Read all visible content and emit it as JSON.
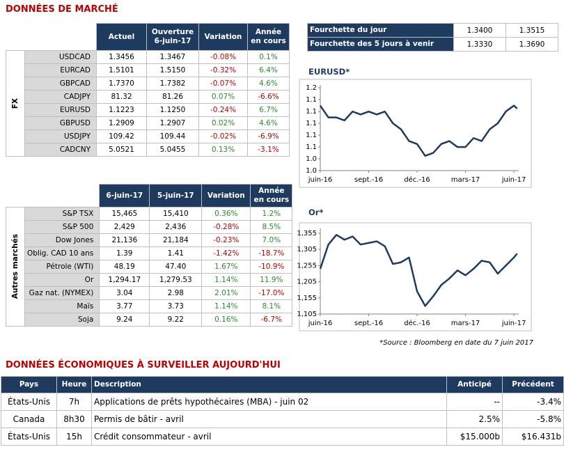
{
  "title": "DONNÉES DE MARCHÉ",
  "fx": {
    "group": "FX",
    "headers": [
      "Actuel",
      "Ouverture 6-juin-17",
      "Variation",
      "Année en cours"
    ],
    "rows": [
      [
        "USDCAD",
        "1.3456",
        "1.3467",
        "-0.08%",
        "0.1%"
      ],
      [
        "EURCAD",
        "1.5101",
        "1.5150",
        "-0.32%",
        "6.4%"
      ],
      [
        "GBPCAD",
        "1.7370",
        "1.7382",
        "-0.07%",
        "4.6%"
      ],
      [
        "CADJPY",
        "81.32",
        "81.26",
        "0.07%",
        "-6.6%"
      ],
      [
        "EURUSD",
        "1.1223",
        "1.1250",
        "-0.24%",
        "6.7%"
      ],
      [
        "GBPUSD",
        "1.2909",
        "1.2907",
        "0.02%",
        "4.6%"
      ],
      [
        "USDJPY",
        "109.42",
        "109.44",
        "-0.02%",
        "-6.9%"
      ],
      [
        "CADCNY",
        "5.0521",
        "5.0455",
        "0.13%",
        "-3.1%"
      ]
    ]
  },
  "markets": {
    "group": "Autres marchés",
    "headers": [
      "6-juin-17",
      "5-juin-17",
      "Variation",
      "Année en cours"
    ],
    "rows": [
      [
        "S&P TSX",
        "15,465",
        "15,410",
        "0.36%",
        "1.2%"
      ],
      [
        "S&P 500",
        "2,429",
        "2,436",
        "-0.28%",
        "8.5%"
      ],
      [
        "Dow Jones",
        "21,136",
        "21,184",
        "-0.23%",
        "7.0%"
      ],
      [
        "Oblig. CAD 10 ans",
        "1.39",
        "1.41",
        "-1.42%",
        "-18.7%"
      ],
      [
        "Pétrole (WTI)",
        "48.19",
        "47.40",
        "1.67%",
        "-10.9%"
      ],
      [
        "Or",
        "1,294.17",
        "1,279.53",
        "1.14%",
        "11.9%"
      ],
      [
        "Gaz nat. (NYMEX)",
        "3.04",
        "2.98",
        "2.01%",
        "-17.0%"
      ],
      [
        "Maïs",
        "3.77",
        "3.73",
        "1.14%",
        "8.1%"
      ],
      [
        "Soja",
        "9.24",
        "9.22",
        "0.16%",
        "-6.7%"
      ]
    ]
  },
  "range": {
    "rows": [
      [
        "Fourchette du jour",
        "1.3400",
        "1.3515"
      ],
      [
        "Fourchette des 5 jours à venir",
        "1.3330",
        "1.3690"
      ]
    ]
  },
  "chart_data": [
    {
      "type": "line",
      "title": "EURUSD*",
      "color": "#1f3a5f",
      "x": [
        0,
        0.5,
        1,
        1.5,
        2,
        2.5,
        3,
        3.5,
        4,
        4.5,
        5,
        5.5,
        6,
        6.5,
        7,
        7.5,
        8,
        8.5,
        9,
        9.5,
        10,
        10.5,
        11,
        11.5,
        12,
        12.2
      ],
      "values": [
        1.13,
        1.11,
        1.11,
        1.105,
        1.12,
        1.115,
        1.12,
        1.115,
        1.12,
        1.1,
        1.09,
        1.07,
        1.065,
        1.045,
        1.05,
        1.065,
        1.07,
        1.06,
        1.06,
        1.075,
        1.07,
        1.09,
        1.1,
        1.12,
        1.13,
        1.125
      ],
      "xlim": [
        0,
        12.3
      ],
      "ylim": [
        1.02,
        1.165
      ],
      "xticks": [
        {
          "value": 0,
          "label": "juin-16"
        },
        {
          "value": 3,
          "label": "sept.-16"
        },
        {
          "value": 6,
          "label": "déc.-16"
        },
        {
          "value": 9,
          "label": "mars-17"
        },
        {
          "value": 12,
          "label": "juin-17"
        }
      ],
      "yticks": [
        {
          "value": 1.02,
          "label": "1.0"
        },
        {
          "value": 1.04,
          "label": "1.0"
        },
        {
          "value": 1.06,
          "label": "1.1"
        },
        {
          "value": 1.08,
          "label": "1.1"
        },
        {
          "value": 1.1,
          "label": "1.1"
        },
        {
          "value": 1.12,
          "label": "1.1"
        },
        {
          "value": 1.14,
          "label": "1.1"
        },
        {
          "value": 1.16,
          "label": "1.2"
        }
      ]
    },
    {
      "type": "line",
      "title": "Or*",
      "color": "#1f3a5f",
      "x": [
        0,
        0.5,
        1,
        1.5,
        2,
        2.5,
        3,
        3.5,
        4,
        4.5,
        5,
        5.5,
        6,
        6.5,
        7,
        7.5,
        8,
        8.5,
        9,
        9.5,
        10,
        10.5,
        11,
        11.5,
        12,
        12.2
      ],
      "values": [
        1245,
        1320,
        1350,
        1335,
        1345,
        1320,
        1325,
        1330,
        1315,
        1260,
        1265,
        1280,
        1175,
        1130,
        1160,
        1195,
        1215,
        1240,
        1225,
        1245,
        1270,
        1265,
        1230,
        1255,
        1280,
        1292
      ],
      "xlim": [
        0,
        12.3
      ],
      "ylim": [
        1105,
        1370
      ],
      "xticks": [
        {
          "value": 0,
          "label": "juin-16"
        },
        {
          "value": 3,
          "label": "sept.-16"
        },
        {
          "value": 6,
          "label": "déc.-16"
        },
        {
          "value": 9,
          "label": "mars-17"
        },
        {
          "value": 12,
          "label": "juin-17"
        }
      ],
      "yticks": [
        {
          "value": 1105,
          "label": "1,105"
        },
        {
          "value": 1155,
          "label": "1,155"
        },
        {
          "value": 1205,
          "label": "1,205"
        },
        {
          "value": 1255,
          "label": "1,255"
        },
        {
          "value": 1305,
          "label": "1,305"
        },
        {
          "value": 1355,
          "label": "1,355"
        }
      ]
    }
  ],
  "source": "*Source : Bloomberg en date du  7 juin 2017",
  "eco": {
    "title": "DONNÉES ÉCONOMIQUES À SURVEILLER AUJOURD'HUI",
    "headers": [
      "Pays",
      "Heure",
      "Description",
      "Anticipé",
      "Précédent"
    ],
    "rows": [
      [
        "États-Unis",
        "7h",
        "Applications de prêts hypothécaires (MBA) - juin 02",
        "--",
        "-3.4%"
      ],
      [
        "Canada",
        "8h30",
        "Permis de bâtir - avril",
        "2.5%",
        "-5.8%"
      ],
      [
        "États-Unis",
        "15h",
        "Crédit consommateur - avril",
        "$15.000b",
        "$16.431b"
      ]
    ]
  }
}
